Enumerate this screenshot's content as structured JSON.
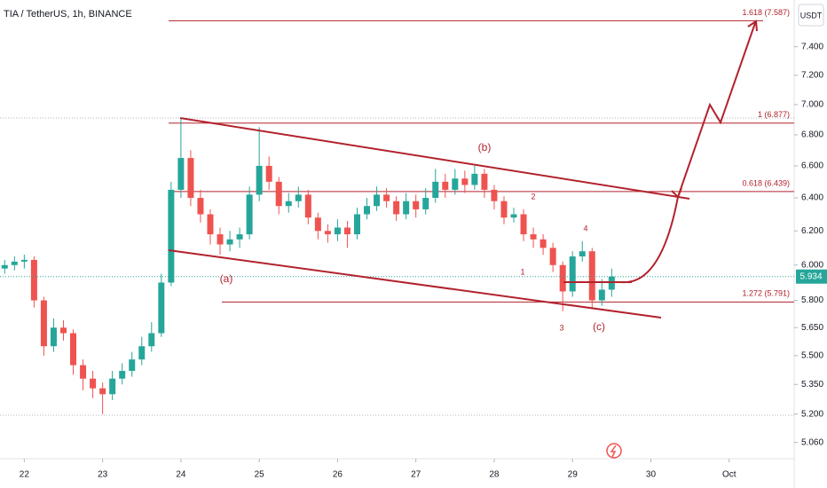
{
  "chart_data": {
    "type": "candlestick",
    "title": "TIA / TetherUS, 1h, BINANCE",
    "currency": "USDT",
    "log_scale": true,
    "up_color": "#26a69a",
    "down_color": "#ef5350",
    "x": [
      21.75,
      21.875,
      22,
      22.125,
      22.25,
      22.375,
      22.5,
      22.625,
      22.75,
      22.875,
      23,
      23.125,
      23.25,
      23.375,
      23.5,
      23.625,
      23.75,
      23.875,
      24,
      24.125,
      24.25,
      24.375,
      24.5,
      24.625,
      24.75,
      24.875,
      25,
      25.125,
      25.25,
      25.375,
      25.5,
      25.625,
      25.75,
      25.875,
      26,
      26.125,
      26.25,
      26.375,
      26.5,
      26.625,
      26.75,
      26.875,
      27,
      27.125,
      27.25,
      27.375,
      27.5,
      27.625,
      27.75,
      27.875,
      28,
      28.125,
      28.25,
      28.375,
      28.5,
      28.625,
      28.75,
      28.875,
      29,
      29.125,
      29.25,
      29.375,
      29.5
    ],
    "open": [
      5.98,
      6.0,
      6.02,
      6.03,
      5.8,
      5.55,
      5.65,
      5.62,
      5.45,
      5.38,
      5.33,
      5.3,
      5.38,
      5.42,
      5.48,
      5.55,
      5.62,
      5.9,
      6.45,
      6.65,
      6.4,
      6.3,
      6.18,
      6.12,
      6.15,
      6.18,
      6.42,
      6.6,
      6.5,
      6.35,
      6.38,
      6.42,
      6.28,
      6.2,
      6.18,
      6.22,
      6.18,
      6.3,
      6.35,
      6.42,
      6.38,
      6.3,
      6.38,
      6.33,
      6.4,
      6.5,
      6.45,
      6.52,
      6.48,
      6.55,
      6.45,
      6.38,
      6.28,
      6.3,
      6.18,
      6.15,
      6.1,
      6.0,
      5.85,
      6.05,
      6.08,
      5.8,
      5.86
    ],
    "high": [
      6.03,
      6.05,
      6.06,
      6.05,
      5.82,
      5.7,
      5.69,
      5.64,
      5.48,
      5.42,
      5.36,
      5.42,
      5.46,
      5.52,
      5.6,
      5.68,
      5.95,
      6.5,
      6.91,
      6.7,
      6.45,
      6.33,
      6.22,
      6.2,
      6.22,
      6.47,
      6.85,
      6.66,
      6.53,
      6.43,
      6.47,
      6.45,
      6.31,
      6.24,
      6.27,
      6.26,
      6.34,
      6.4,
      6.47,
      6.46,
      6.41,
      6.43,
      6.42,
      6.46,
      6.58,
      6.55,
      6.58,
      6.57,
      6.6,
      6.58,
      6.48,
      6.41,
      6.34,
      6.33,
      6.22,
      6.18,
      6.13,
      6.02,
      6.08,
      6.14,
      6.1,
      5.92,
      5.98
    ],
    "low": [
      5.95,
      5.97,
      5.98,
      5.76,
      5.5,
      5.52,
      5.58,
      5.4,
      5.32,
      5.28,
      5.2,
      5.27,
      5.35,
      5.39,
      5.45,
      5.52,
      5.6,
      5.88,
      6.4,
      6.35,
      6.25,
      6.12,
      6.06,
      6.08,
      6.1,
      6.15,
      6.38,
      6.45,
      6.3,
      6.31,
      6.34,
      6.24,
      6.15,
      6.13,
      6.14,
      6.1,
      6.15,
      6.27,
      6.32,
      6.34,
      6.26,
      6.27,
      6.28,
      6.3,
      6.37,
      6.4,
      6.42,
      6.43,
      6.45,
      6.4,
      6.33,
      6.24,
      6.25,
      6.14,
      6.1,
      6.06,
      5.96,
      5.74,
      5.82,
      6.02,
      5.76,
      5.77,
      5.82
    ],
    "close": [
      6.0,
      6.02,
      6.03,
      5.8,
      5.55,
      5.65,
      5.62,
      5.45,
      5.38,
      5.33,
      5.3,
      5.38,
      5.42,
      5.48,
      5.55,
      5.62,
      5.9,
      6.45,
      6.65,
      6.4,
      6.3,
      6.18,
      6.12,
      6.15,
      6.18,
      6.42,
      6.6,
      6.5,
      6.35,
      6.38,
      6.42,
      6.28,
      6.2,
      6.18,
      6.22,
      6.18,
      6.3,
      6.35,
      6.42,
      6.38,
      6.3,
      6.38,
      6.33,
      6.4,
      6.5,
      6.45,
      6.52,
      6.48,
      6.55,
      6.45,
      6.38,
      6.28,
      6.3,
      6.18,
      6.15,
      6.1,
      6.0,
      5.85,
      6.05,
      6.08,
      5.8,
      5.86,
      5.934
    ],
    "xlim": [
      21.69,
      31.83
    ],
    "xticks": [
      22,
      23,
      24,
      25,
      26,
      27,
      28,
      29,
      30,
      {
        "value": 31,
        "label": "Oct"
      }
    ],
    "ylim": [
      4.99,
      7.74
    ],
    "yticks": [
      {
        "value": 5.06,
        "label": "5.060"
      },
      {
        "value": 5.2,
        "label": "5.200"
      },
      {
        "value": 5.35,
        "label": "5.350"
      },
      {
        "value": 5.5,
        "label": "5.500"
      },
      {
        "value": 5.65,
        "label": "5.650"
      },
      {
        "value": 5.8,
        "label": "5.800"
      },
      {
        "value": 6,
        "label": "6.000"
      },
      {
        "value": 6.2,
        "label": "6.200"
      },
      {
        "value": 6.4,
        "label": "6.400"
      },
      {
        "value": 6.6,
        "label": "6.600"
      },
      {
        "value": 6.8,
        "label": "6.800"
      },
      {
        "value": 7,
        "label": "7.000"
      },
      {
        "value": 7.2,
        "label": "7.200"
      },
      {
        "value": 7.4,
        "label": "7.400"
      }
    ],
    "fib_levels": [
      {
        "label": "1.618 (7.587)",
        "value": 7.587
      },
      {
        "label": "1 (6.877)",
        "value": 6.877
      },
      {
        "label": "0.618 (6.439)",
        "value": 6.439
      },
      {
        "label": "1.272 (5.791)",
        "value": 5.791
      }
    ],
    "wave_labels": [
      "(a)",
      "(b)",
      "(c)",
      "1",
      "2",
      "3",
      "4"
    ]
  }
}
